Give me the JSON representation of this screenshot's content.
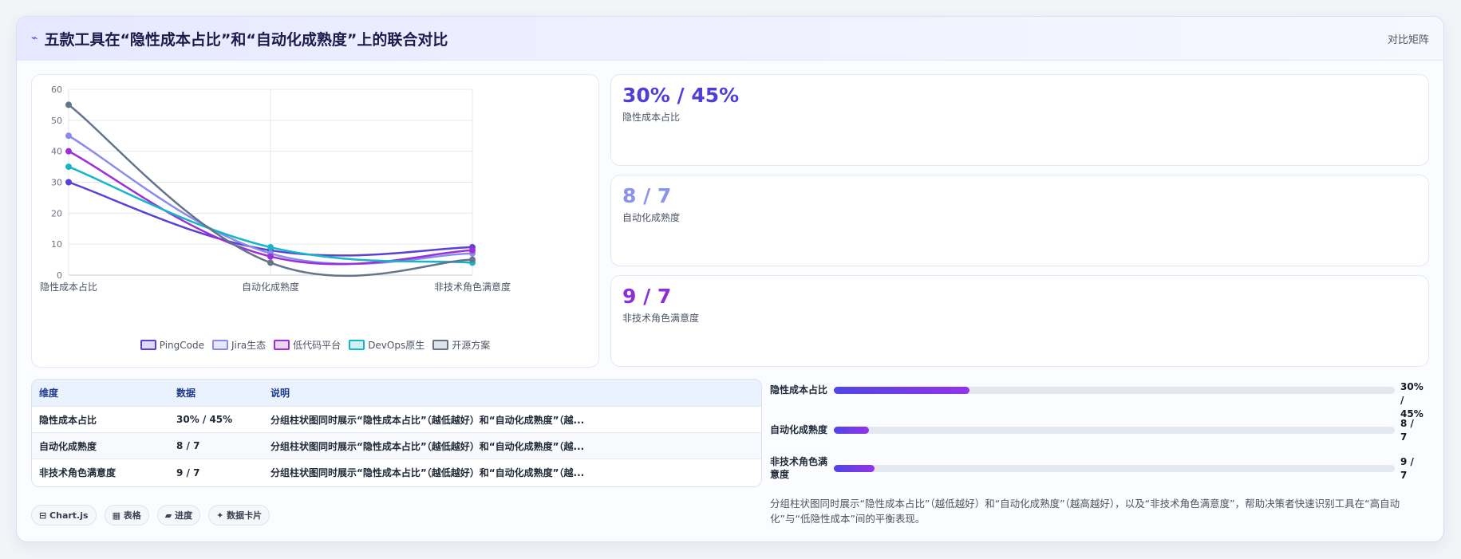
{
  "header": {
    "title": "五款工具在“隐性成本占比”和“自动化成熟度”上的联合对比",
    "link": "对比矩阵"
  },
  "chart_data": {
    "type": "line",
    "categories": [
      "隐性成本占比",
      "自动化成熟度",
      "非技术角色满意度"
    ],
    "ylim": [
      0,
      60
    ],
    "yticks": [
      0,
      10,
      20,
      30,
      40,
      50,
      60
    ],
    "grid": true,
    "legend_position": "bottom",
    "series": [
      {
        "name": "PingCode",
        "values": [
          30,
          8,
          9
        ],
        "color": "#5a40d4"
      },
      {
        "name": "Jira生态",
        "values": [
          45,
          7,
          7
        ],
        "color": "#8b8bea"
      },
      {
        "name": "低代码平台",
        "values": [
          40,
          6,
          8
        ],
        "color": "#9b30d9"
      },
      {
        "name": "DevOps原生",
        "values": [
          35,
          9,
          4
        ],
        "color": "#17b6c6"
      },
      {
        "name": "开源方案",
        "values": [
          55,
          4,
          5
        ],
        "color": "#64748b"
      }
    ]
  },
  "stats": [
    {
      "value": "30% / 45%",
      "label": "隐性成本占比",
      "color": "#4f3fd8"
    },
    {
      "value": "8 / 7",
      "label": "自动化成熟度",
      "color": "#8b93ea"
    },
    {
      "value": "9 / 7",
      "label": "非技术角色满意度",
      "color": "#8e2fd6"
    }
  ],
  "table": {
    "headers": [
      "维度",
      "数据",
      "说明"
    ],
    "rows": [
      [
        "隐性成本占比",
        "30% / 45%",
        "分组柱状图同时展示“隐性成本占比”（越低越好）和“自动化成熟度”（越..."
      ],
      [
        "自动化成熟度",
        "8 / 7",
        "分组柱状图同时展示“隐性成本占比”（越低越好）和“自动化成熟度”（越..."
      ],
      [
        "非技术角色满意度",
        "9 / 7",
        "分组柱状图同时展示“隐性成本占比”（越低越好）和“自动化成熟度”（越..."
      ]
    ]
  },
  "tags": [
    "⊟ Chart.js",
    "▦ 表格",
    "▰ 进度",
    "✦ 数据卡片"
  ],
  "bars": [
    {
      "label": "隐性成本占比",
      "value": "30% / 45%",
      "fraction": 0.242
    },
    {
      "label": "自动化成熟度",
      "value": "8 / 7",
      "fraction": 0.063
    },
    {
      "label": "非技术角色满意度",
      "value": "9 / 7",
      "fraction": 0.072
    }
  ],
  "note": "分组柱状图同时展示“隐性成本占比”（越低越好）和“自动化成熟度”（越高越好），以及“非技术角色满意度”，帮助决策者快速识别工具在“高自动化”与“低隐性成本”间的平衡表现。"
}
